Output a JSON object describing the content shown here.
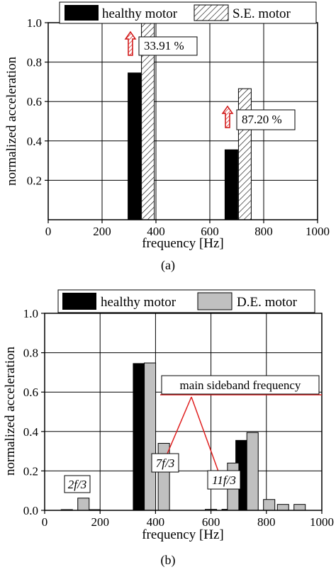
{
  "chart_data": [
    {
      "type": "bar",
      "panel_label": "(a)",
      "xlabel": "frequency [Hz]",
      "ylabel": "normalized acceleration",
      "xlim": [
        0,
        1000
      ],
      "ylim": [
        0,
        1.0
      ],
      "xticks": [
        "0",
        "200",
        "400",
        "600",
        "800",
        "1000"
      ],
      "yticks": [
        "0.2",
        "0.4",
        "0.6",
        "0.8",
        "1.0"
      ],
      "grid": true,
      "legend_position": "top",
      "series": [
        {
          "name": "healthy motor",
          "color": "#000000",
          "pattern": "solid",
          "points": [
            {
              "x": 320,
              "y": 0.745
            },
            {
              "x": 680,
              "y": 0.355
            }
          ]
        },
        {
          "name": "S.E. motor",
          "color": "#ffffff",
          "pattern": "hatch",
          "points": [
            {
              "x": 370,
              "y": 1.0
            },
            {
              "x": 730,
              "y": 0.665
            }
          ]
        }
      ],
      "annotations": [
        {
          "text": "33.91 %",
          "x": 370
        },
        {
          "text": "87.20 %",
          "x": 730
        }
      ]
    },
    {
      "type": "bar",
      "panel_label": "(b)",
      "xlabel": "frequency [Hz]",
      "ylabel": "normalized acceleration",
      "xlim": [
        0,
        1000
      ],
      "ylim": [
        0,
        1.0
      ],
      "xticks": [
        "0",
        "200",
        "400",
        "600",
        "800",
        "1000"
      ],
      "yticks": [
        "0.0",
        "0.2",
        "0.4",
        "0.6",
        "0.8",
        "1.0"
      ],
      "grid": true,
      "legend_position": "top",
      "series": [
        {
          "name": "healthy motor",
          "color": "#000000",
          "points": [
            {
              "x": 80,
              "y": 0.003
            },
            {
              "x": 180,
              "y": 0.003
            },
            {
              "x": 340,
              "y": 0.745
            },
            {
              "x": 660,
              "y": 0.005
            },
            {
              "x": 710,
              "y": 0.355
            }
          ]
        },
        {
          "name": "D.E. motor",
          "color": "#c0c0c0",
          "points": [
            {
              "x": 140,
              "y": 0.062
            },
            {
              "x": 380,
              "y": 0.748
            },
            {
              "x": 430,
              "y": 0.34
            },
            {
              "x": 600,
              "y": 0.005
            },
            {
              "x": 680,
              "y": 0.24
            },
            {
              "x": 750,
              "y": 0.395
            },
            {
              "x": 810,
              "y": 0.055
            },
            {
              "x": 860,
              "y": 0.03
            },
            {
              "x": 920,
              "y": 0.03
            }
          ]
        }
      ],
      "annotations": [
        {
          "text": "main sideband frequency"
        },
        {
          "text": "2f/3",
          "x": 120
        },
        {
          "text": "7f/3",
          "x": 430
        },
        {
          "text": "11f/3",
          "x": 680
        }
      ]
    }
  ]
}
